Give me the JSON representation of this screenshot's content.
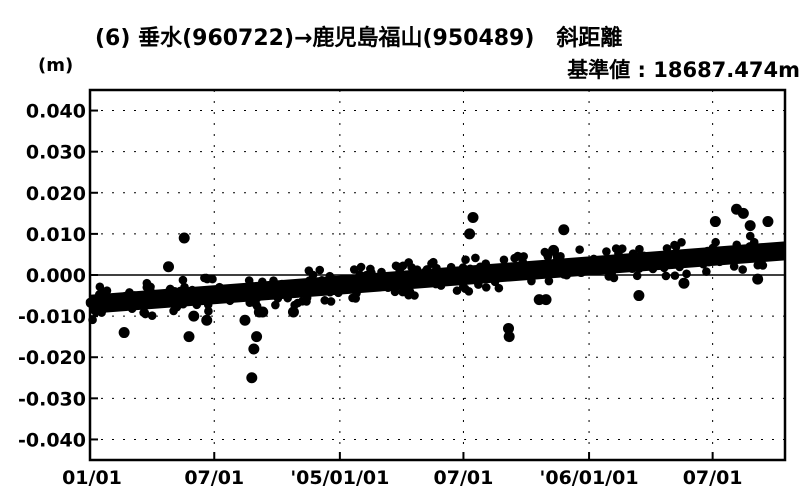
{
  "chart_data": {
    "type": "scatter",
    "title": "(6) 垂水(960722)→鹿児島福山(950489)　斜距離",
    "subtitle": "基準値 : 18687.474m",
    "ylabel": "(m)",
    "xlabel": "",
    "ylim": [
      -0.045,
      0.045
    ],
    "y_ticks": [
      0.04,
      0.03,
      0.02,
      0.01,
      0.0,
      -0.01,
      -0.02,
      -0.03,
      -0.04
    ],
    "y_tick_labels": [
      "0.040",
      "0.030",
      "0.020",
      "0.010",
      "0.000",
      "-0.010",
      "-0.020",
      "-0.030",
      "-0.040"
    ],
    "x_range": [
      "2004-01-01",
      "2006-10-15"
    ],
    "x_ticks": [
      "2004-01-01",
      "2004-07-01",
      "2005-01-01",
      "2005-07-01",
      "2006-01-01",
      "2006-07-01"
    ],
    "x_tick_labels": [
      "01/01",
      "07/01",
      "'05/01/01",
      "07/01",
      "'06/01/01",
      "07/01"
    ],
    "grid": true,
    "trend": {
      "start": [
        "2004-01-01",
        -0.007
      ],
      "end": [
        "2006-10-15",
        0.006
      ]
    },
    "series": [
      {
        "values": [
          [
            "2004-02-20",
            -0.014
          ],
          [
            "2004-04-25",
            0.002
          ],
          [
            "2004-05-18",
            0.009
          ],
          [
            "2004-05-25",
            -0.015
          ],
          [
            "2004-06-01",
            -0.01
          ],
          [
            "2004-06-20",
            -0.011
          ],
          [
            "2004-08-15",
            -0.011
          ],
          [
            "2004-08-25",
            -0.025
          ],
          [
            "2004-08-28",
            -0.018
          ],
          [
            "2004-09-01",
            -0.015
          ],
          [
            "2004-09-05",
            -0.009
          ],
          [
            "2004-09-10",
            -0.009
          ],
          [
            "2004-10-25",
            -0.009
          ],
          [
            "2005-07-10",
            0.01
          ],
          [
            "2005-07-15",
            0.014
          ],
          [
            "2005-09-05",
            -0.013
          ],
          [
            "2005-09-06",
            -0.015
          ],
          [
            "2005-10-20",
            -0.006
          ],
          [
            "2005-10-30",
            -0.006
          ],
          [
            "2005-11-10",
            0.006
          ],
          [
            "2005-11-25",
            0.011
          ],
          [
            "2006-03-15",
            -0.005
          ],
          [
            "2006-05-20",
            -0.002
          ],
          [
            "2006-07-05",
            0.013
          ],
          [
            "2006-08-05",
            0.016
          ],
          [
            "2006-08-15",
            0.015
          ],
          [
            "2006-08-25",
            0.012
          ],
          [
            "2006-09-05",
            -0.001
          ],
          [
            "2006-09-20",
            0.013
          ]
        ]
      }
    ]
  }
}
